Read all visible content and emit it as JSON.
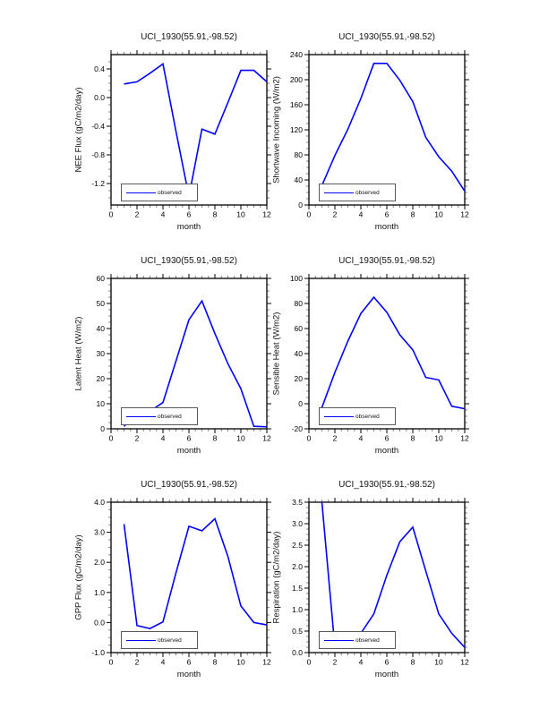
{
  "styles": {
    "line_color": "#0000ff",
    "axis_color": "#000000",
    "minor_tick_color": "#858585",
    "legend_border_color": "#5a5a5a",
    "background": "#ffffff"
  },
  "chart_data": [
    {
      "type": "line",
      "title": "UCI_1930(55.91,-98.52)",
      "xlabel": "month",
      "ylabel": "NEE Flux (gC/m2/day)",
      "legend": "observed",
      "legend_position": "lower-left",
      "grid": false,
      "x": [
        1,
        2,
        3,
        4,
        5,
        6,
        7,
        8,
        9,
        10,
        11,
        12
      ],
      "values": [
        0.19,
        0.22,
        0.34,
        0.47,
        -0.47,
        -1.38,
        -0.44,
        -0.51,
        -0.07,
        0.38,
        0.38,
        0.22
      ],
      "xlim": [
        0,
        12
      ],
      "ylim": [
        -1.5,
        0.6
      ],
      "x_ticks": {
        "values": [
          0,
          2,
          4,
          6,
          8,
          10,
          12
        ],
        "labels": [
          "0",
          "2",
          "4",
          "6",
          "8",
          "10",
          "12"
        ]
      },
      "y_ticks": {
        "values": [
          0.4,
          0.0,
          -0.4,
          -0.8,
          -1.2
        ],
        "labels": [
          "0.4",
          "0.0",
          "-0.4",
          "-0.8",
          "-1.2"
        ]
      },
      "x_minor_step": 0.5,
      "y_minor_step": 0.1,
      "line_color": "#0000ff"
    },
    {
      "type": "line",
      "title": "UCI_1930(55.91,-98.52)",
      "xlabel": "month",
      "ylabel": "Shortwave Incoming (W/m2)",
      "legend": "observed",
      "legend_position": "lower-left",
      "grid": false,
      "x": [
        1,
        2,
        3,
        4,
        5,
        6,
        7,
        8,
        9,
        10,
        11,
        12
      ],
      "values": [
        31,
        79,
        121,
        170,
        226,
        226,
        199,
        165,
        108,
        77,
        54,
        22
      ],
      "xlim": [
        0,
        12
      ],
      "ylim": [
        0,
        240
      ],
      "x_ticks": {
        "values": [
          0,
          2,
          4,
          6,
          8,
          10,
          12
        ],
        "labels": [
          "0",
          "2",
          "4",
          "6",
          "8",
          "10",
          "12"
        ]
      },
      "y_ticks": {
        "values": [
          0,
          40,
          80,
          120,
          160,
          200,
          240
        ],
        "labels": [
          "0",
          "40",
          "80",
          "120",
          "160",
          "200",
          "240"
        ]
      },
      "x_minor_step": 0.5,
      "y_minor_step": 10,
      "line_color": "#0000ff"
    },
    {
      "type": "line",
      "title": "UCI_1930(55.91,-98.52)",
      "xlabel": "month",
      "ylabel": "Latent Heat (W/m2)",
      "legend": "observed",
      "legend_position": "lower-left",
      "grid": false,
      "x": [
        1,
        2,
        3,
        4,
        5,
        6,
        7,
        8,
        9,
        10,
        11,
        12
      ],
      "values": [
        1,
        5.5,
        7,
        10.5,
        27,
        43.5,
        51,
        38,
        26,
        16,
        1,
        0.8
      ],
      "xlim": [
        0,
        12
      ],
      "ylim": [
        0,
        60
      ],
      "x_ticks": {
        "values": [
          0,
          2,
          4,
          6,
          8,
          10,
          12
        ],
        "labels": [
          "0",
          "2",
          "4",
          "6",
          "8",
          "10",
          "12"
        ]
      },
      "y_ticks": {
        "values": [
          0,
          10,
          20,
          30,
          40,
          50,
          60
        ],
        "labels": [
          "0",
          "10",
          "20",
          "30",
          "40",
          "50",
          "60"
        ]
      },
      "x_minor_step": 0.5,
      "y_minor_step": 2.5,
      "line_color": "#0000ff"
    },
    {
      "type": "line",
      "title": "UCI_1930(55.91,-98.52)",
      "xlabel": "month",
      "ylabel": "Sensible Heat (W/m2)",
      "legend": "observed",
      "legend_position": "lower-left",
      "grid": false,
      "x": [
        1,
        2,
        3,
        4,
        5,
        6,
        7,
        8,
        9,
        10,
        11,
        12
      ],
      "values": [
        -3,
        25,
        50,
        72,
        85,
        73,
        55,
        43,
        21,
        19,
        -2,
        -4
      ],
      "xlim": [
        0,
        12
      ],
      "ylim": [
        -20,
        100
      ],
      "x_ticks": {
        "values": [
          0,
          2,
          4,
          6,
          8,
          10,
          12
        ],
        "labels": [
          "0",
          "2",
          "4",
          "6",
          "8",
          "10",
          "12"
        ]
      },
      "y_ticks": {
        "values": [
          -20,
          0,
          20,
          40,
          60,
          80,
          100
        ],
        "labels": [
          "-20",
          "0",
          "20",
          "40",
          "60",
          "80",
          "100"
        ]
      },
      "x_minor_step": 0.5,
      "y_minor_step": 5,
      "line_color": "#0000ff"
    },
    {
      "type": "line",
      "title": "UCI_1930(55.91,-98.52)",
      "xlabel": "month",
      "ylabel": "GPP Flux (gC/m2/day)",
      "legend": "observed",
      "legend_position": "lower-left",
      "grid": false,
      "x": [
        1,
        2,
        3,
        4,
        5,
        6,
        7,
        8,
        9,
        10,
        11,
        12
      ],
      "values": [
        3.27,
        -0.1,
        -0.2,
        0.02,
        1.65,
        3.2,
        3.05,
        3.45,
        2.2,
        0.55,
        0.0,
        -0.08
      ],
      "xlim": [
        0,
        12
      ],
      "ylim": [
        -1.0,
        4.0
      ],
      "x_ticks": {
        "values": [
          0,
          2,
          4,
          6,
          8,
          10,
          12
        ],
        "labels": [
          "0",
          "2",
          "4",
          "6",
          "8",
          "10",
          "12"
        ]
      },
      "y_ticks": {
        "values": [
          -1.0,
          0.0,
          1.0,
          2.0,
          3.0,
          4.0
        ],
        "labels": [
          "-1.0",
          "0.0",
          "1.0",
          "2.0",
          "3.0",
          "4.0"
        ]
      },
      "x_minor_step": 0.5,
      "y_minor_step": 0.25,
      "line_color": "#0000ff"
    },
    {
      "type": "line",
      "title": "UCI_1930(55.91,-98.52)",
      "xlabel": "month",
      "ylabel": "Respiration (gC/m2/day)",
      "legend": "observed",
      "legend_position": "lower-left",
      "grid": false,
      "x": [
        1,
        2,
        3,
        4,
        5,
        6,
        7,
        8,
        9,
        10,
        11,
        12
      ],
      "values": [
        3.5,
        0.12,
        0.2,
        0.45,
        0.9,
        1.8,
        2.58,
        2.92,
        1.9,
        0.9,
        0.45,
        0.12
      ],
      "xlim": [
        0,
        12
      ],
      "ylim": [
        0.0,
        3.5
      ],
      "x_ticks": {
        "values": [
          0,
          2,
          4,
          6,
          8,
          10,
          12
        ],
        "labels": [
          "0",
          "2",
          "4",
          "6",
          "8",
          "10",
          "12"
        ]
      },
      "y_ticks": {
        "values": [
          0.0,
          0.5,
          1.0,
          1.5,
          2.0,
          2.5,
          3.0,
          3.5
        ],
        "labels": [
          "0.0",
          "0.5",
          "1.0",
          "1.5",
          "2.0",
          "2.5",
          "3.0",
          "3.5"
        ]
      },
      "x_minor_step": 0.5,
      "y_minor_step": 0.125,
      "line_color": "#0000ff"
    }
  ]
}
